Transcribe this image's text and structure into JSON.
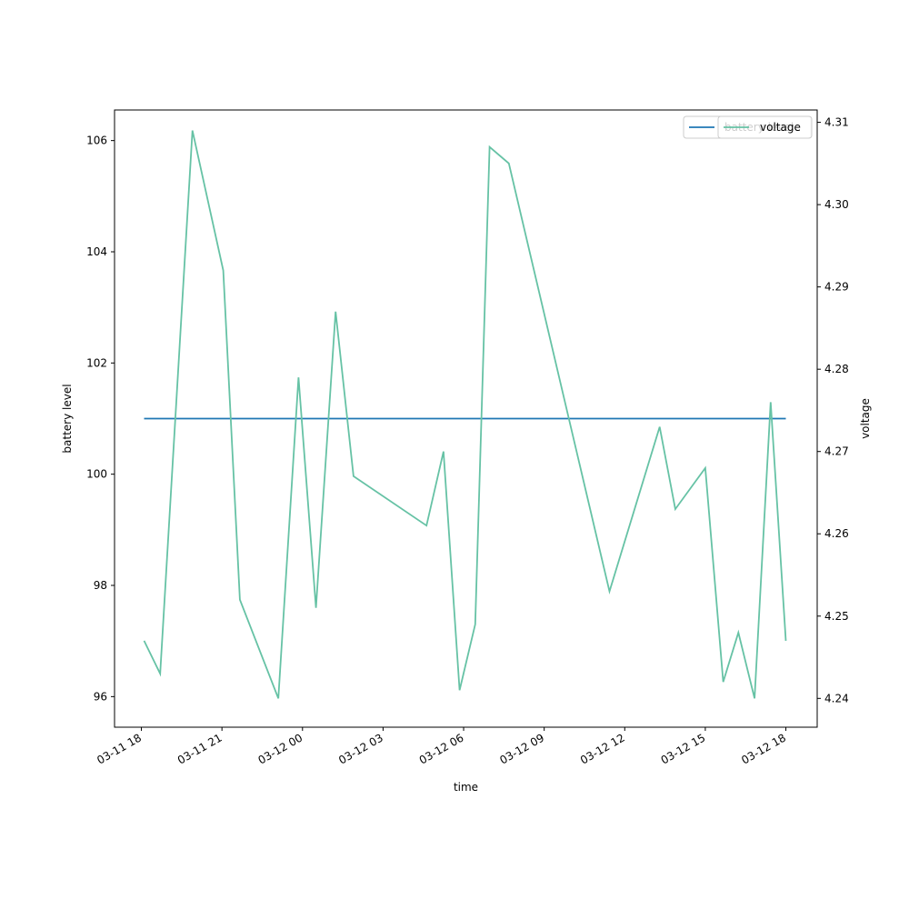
{
  "chart_data": {
    "type": "line",
    "xlabel": "time",
    "ylabel_left": "battery level",
    "ylabel_right": "voltage",
    "x_ticks": [
      "03-11 18",
      "03-11 21",
      "03-12 00",
      "03-12 03",
      "03-12 06",
      "03-12 09",
      "03-12 12",
      "03-12 15",
      "03-12 18"
    ],
    "y_left_ticks": [
      "96",
      "98",
      "100",
      "102",
      "104",
      "106"
    ],
    "y_right_ticks": [
      "4.24",
      "4.25",
      "4.26",
      "4.27",
      "4.28",
      "4.29",
      "4.30",
      "4.31"
    ],
    "y_left_lim": [
      95.45,
      106.55
    ],
    "y_right_lim": [
      4.2365,
      4.3115
    ],
    "x_range": [
      "2024-03-11 17:00",
      "2024-03-12 19:10"
    ],
    "grid": false,
    "legend": {
      "placement": "top-right",
      "entries": [
        "battery level",
        "voltage"
      ]
    },
    "series": [
      {
        "name": "battery level",
        "axis": "left",
        "color": "#1f77b4",
        "points": [
          {
            "x": "2024-03-11 18:06",
            "y": 101
          },
          {
            "x": "2024-03-12 18:00",
            "y": 101
          }
        ]
      },
      {
        "name": "voltage",
        "axis": "right",
        "color": "#66c2a5",
        "points": [
          {
            "x": "2024-03-11 18:06",
            "y": 4.247
          },
          {
            "x": "2024-03-11 18:42",
            "y": 4.243
          },
          {
            "x": "2024-03-11 19:54",
            "y": 4.309
          },
          {
            "x": "2024-03-11 21:03",
            "y": 4.292
          },
          {
            "x": "2024-03-11 21:40",
            "y": 4.252
          },
          {
            "x": "2024-03-11 23:06",
            "y": 4.24
          },
          {
            "x": "2024-03-11 23:51",
            "y": 4.279
          },
          {
            "x": "2024-03-12 00:30",
            "y": 4.251
          },
          {
            "x": "2024-03-12 01:14",
            "y": 4.287
          },
          {
            "x": "2024-03-12 01:54",
            "y": 4.267
          },
          {
            "x": "2024-03-12 04:37",
            "y": 4.261
          },
          {
            "x": "2024-03-12 05:15",
            "y": 4.27
          },
          {
            "x": "2024-03-12 05:51",
            "y": 4.241
          },
          {
            "x": "2024-03-12 06:26",
            "y": 4.249
          },
          {
            "x": "2024-03-12 06:58",
            "y": 4.307
          },
          {
            "x": "2024-03-12 07:41",
            "y": 4.305
          },
          {
            "x": "2024-03-12 11:26",
            "y": 4.253
          },
          {
            "x": "2024-03-12 13:18",
            "y": 4.273
          },
          {
            "x": "2024-03-12 13:53",
            "y": 4.263
          },
          {
            "x": "2024-03-12 15:00",
            "y": 4.268
          },
          {
            "x": "2024-03-12 15:40",
            "y": 4.242
          },
          {
            "x": "2024-03-12 16:14",
            "y": 4.248
          },
          {
            "x": "2024-03-12 16:50",
            "y": 4.24
          },
          {
            "x": "2024-03-12 17:26",
            "y": 4.276
          },
          {
            "x": "2024-03-12 18:00",
            "y": 4.247
          }
        ]
      }
    ]
  }
}
